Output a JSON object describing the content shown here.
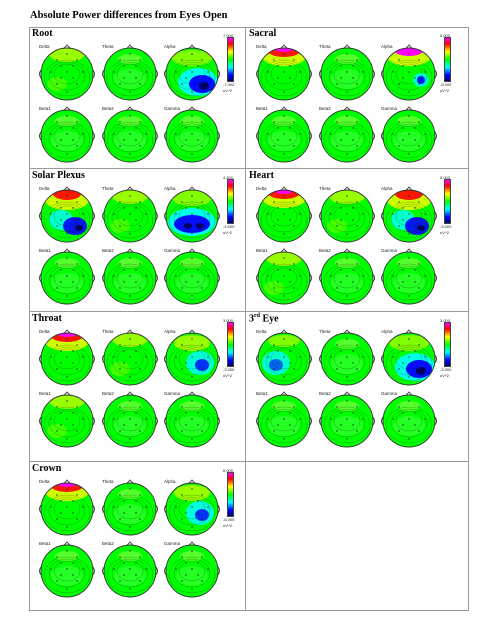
{
  "title": "Absolute Power differences from Eyes Open",
  "band_labels": [
    "Delta",
    "Theta",
    "Alpha",
    "Beta1",
    "Beta2",
    "Gamma"
  ],
  "colors": {
    "magenta": "#ff00ff",
    "red": "#ff0000",
    "yellow": "#ffff00",
    "green": "#00ff00",
    "cyan": "#00ffff",
    "blue": "#0000ff",
    "navy": "#000066",
    "head_outline": "#333333"
  },
  "panels": [
    {
      "name": "Root",
      "scale_max": "7.000",
      "scale_min": "-7.000",
      "unit": "uV^2",
      "maps": [
        "green-yellow",
        "green",
        "alpha-blue-right",
        "green",
        "green",
        "green"
      ]
    },
    {
      "name": "Sacral",
      "scale_max": "5.000",
      "scale_min": "-5.000",
      "unit": "uV^2",
      "maps": [
        "magenta-top",
        "green",
        "magenta-top-blue",
        "green",
        "green",
        "green"
      ]
    },
    {
      "name": "Solar Plexus",
      "scale_max": "4.500",
      "scale_min": "-4.500",
      "unit": "uV^2",
      "maps": [
        "red-top-blue",
        "green-yellow",
        "alpha-blue-center",
        "green",
        "green",
        "green"
      ]
    },
    {
      "name": "Heart",
      "scale_max": "5.000",
      "scale_min": "-5.000",
      "unit": "uV^2",
      "maps": [
        "magenta-top",
        "green-yellow",
        "red-top-blue",
        "green-yellow",
        "green",
        "green"
      ]
    },
    {
      "name": "Throat",
      "scale_max": "3.000",
      "scale_min": "-3.000",
      "unit": "uV^2",
      "maps": [
        "magenta-top",
        "green-yellow",
        "cyan-right",
        "green-yellow",
        "green",
        "green"
      ]
    },
    {
      "name": "3rd Eye",
      "name_base": "3",
      "name_sup": "rd",
      "name_rest": " Eye",
      "scale_max": "3.000",
      "scale_min": "-3.000",
      "unit": "uV^2",
      "maps": [
        "cyan-left",
        "green",
        "alpha-blue-right",
        "green",
        "green",
        "green"
      ]
    },
    {
      "name": "Crown",
      "scale_max": "6.000",
      "scale_min": "-6.000",
      "unit": "uV^2",
      "maps": [
        "magenta-top",
        "green",
        "cyan-right",
        "green",
        "green",
        "green"
      ]
    }
  ]
}
